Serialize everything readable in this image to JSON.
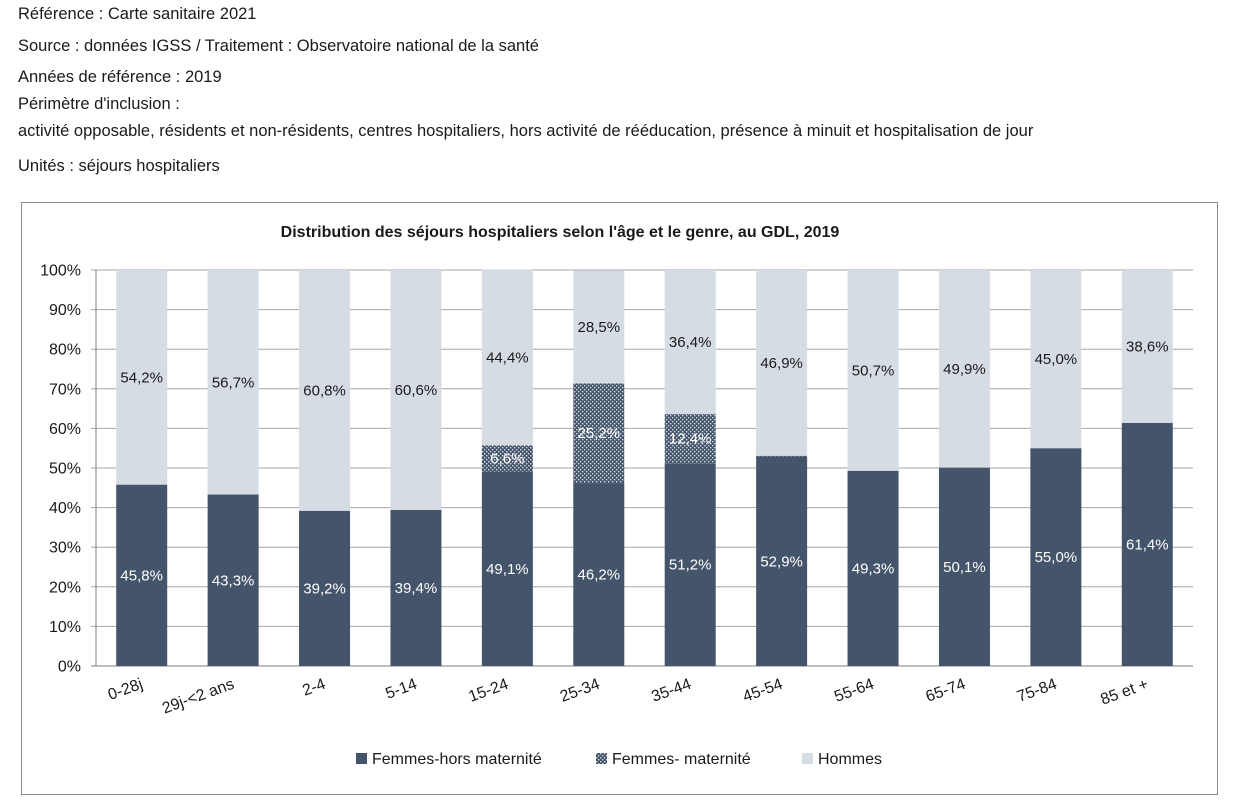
{
  "header": {
    "reference": "Référence : Carte sanitaire 2021",
    "source": "Source : données IGSS / Traitement : Observatoire national de la santé",
    "years": "Années de référence : 2019",
    "perimeter_label": "Périmètre d'inclusion :",
    "perimeter_text": "activité opposable, résidents et non-résidents, centres hospitaliers, hors activité de rééducation, présence à minuit et hospitalisation de jour",
    "units": "Unités : séjours hospitaliers"
  },
  "colors": {
    "femmes_hors": "#44546a",
    "femmes_mat_bg": "#44546a",
    "femmes_mat_dot": "#d6dce4",
    "hommes": "#d6dce4",
    "grid": "#a6a6a6"
  },
  "chart_data": {
    "type": "bar",
    "stacked": true,
    "title": "Distribution des séjours hospitaliers selon l'âge et le genre, au GDL, 2019",
    "xlabel": "",
    "ylabel": "",
    "ylim": [
      0,
      100
    ],
    "yticks": [
      "0%",
      "10%",
      "20%",
      "30%",
      "40%",
      "50%",
      "60%",
      "70%",
      "80%",
      "90%",
      "100%"
    ],
    "grid": true,
    "legend_position": "bottom",
    "categories": [
      "0-28j",
      "29j-<2 ans",
      "2-4",
      "5-14",
      "15-24",
      "25-34",
      "35-44",
      "45-54",
      "55-64",
      "65-74",
      "75-84",
      "85 et +"
    ],
    "series": [
      {
        "name": "Femmes-hors maternité",
        "values": [
          45.8,
          43.3,
          39.2,
          39.4,
          49.1,
          46.2,
          51.2,
          52.9,
          49.3,
          50.1,
          55.0,
          61.4
        ],
        "labels": [
          "45,8%",
          "43,3%",
          "39,2%",
          "39,4%",
          "49,1%",
          "46,2%",
          "51,2%",
          "52,9%",
          "49,3%",
          "50,1%",
          "55,0%",
          "61,4%"
        ]
      },
      {
        "name": "Femmes- maternité",
        "values": [
          0,
          0,
          0,
          0,
          6.6,
          25.2,
          12.4,
          0.2,
          0,
          0,
          0,
          0
        ],
        "labels": [
          "",
          "",
          "",
          "",
          "6,6%",
          "25,2%",
          "12,4%",
          "",
          "",
          "",
          "",
          ""
        ]
      },
      {
        "name": "Hommes",
        "values": [
          54.2,
          56.7,
          60.8,
          60.6,
          44.4,
          28.5,
          36.4,
          46.9,
          50.7,
          49.9,
          45.0,
          38.6
        ],
        "labels": [
          "54,2%",
          "56,7%",
          "60,8%",
          "60,6%",
          "44,4%",
          "28,5%",
          "36,4%",
          "46,9%",
          "50,7%",
          "49,9%",
          "45,0%",
          "38,6%"
        ]
      }
    ]
  }
}
